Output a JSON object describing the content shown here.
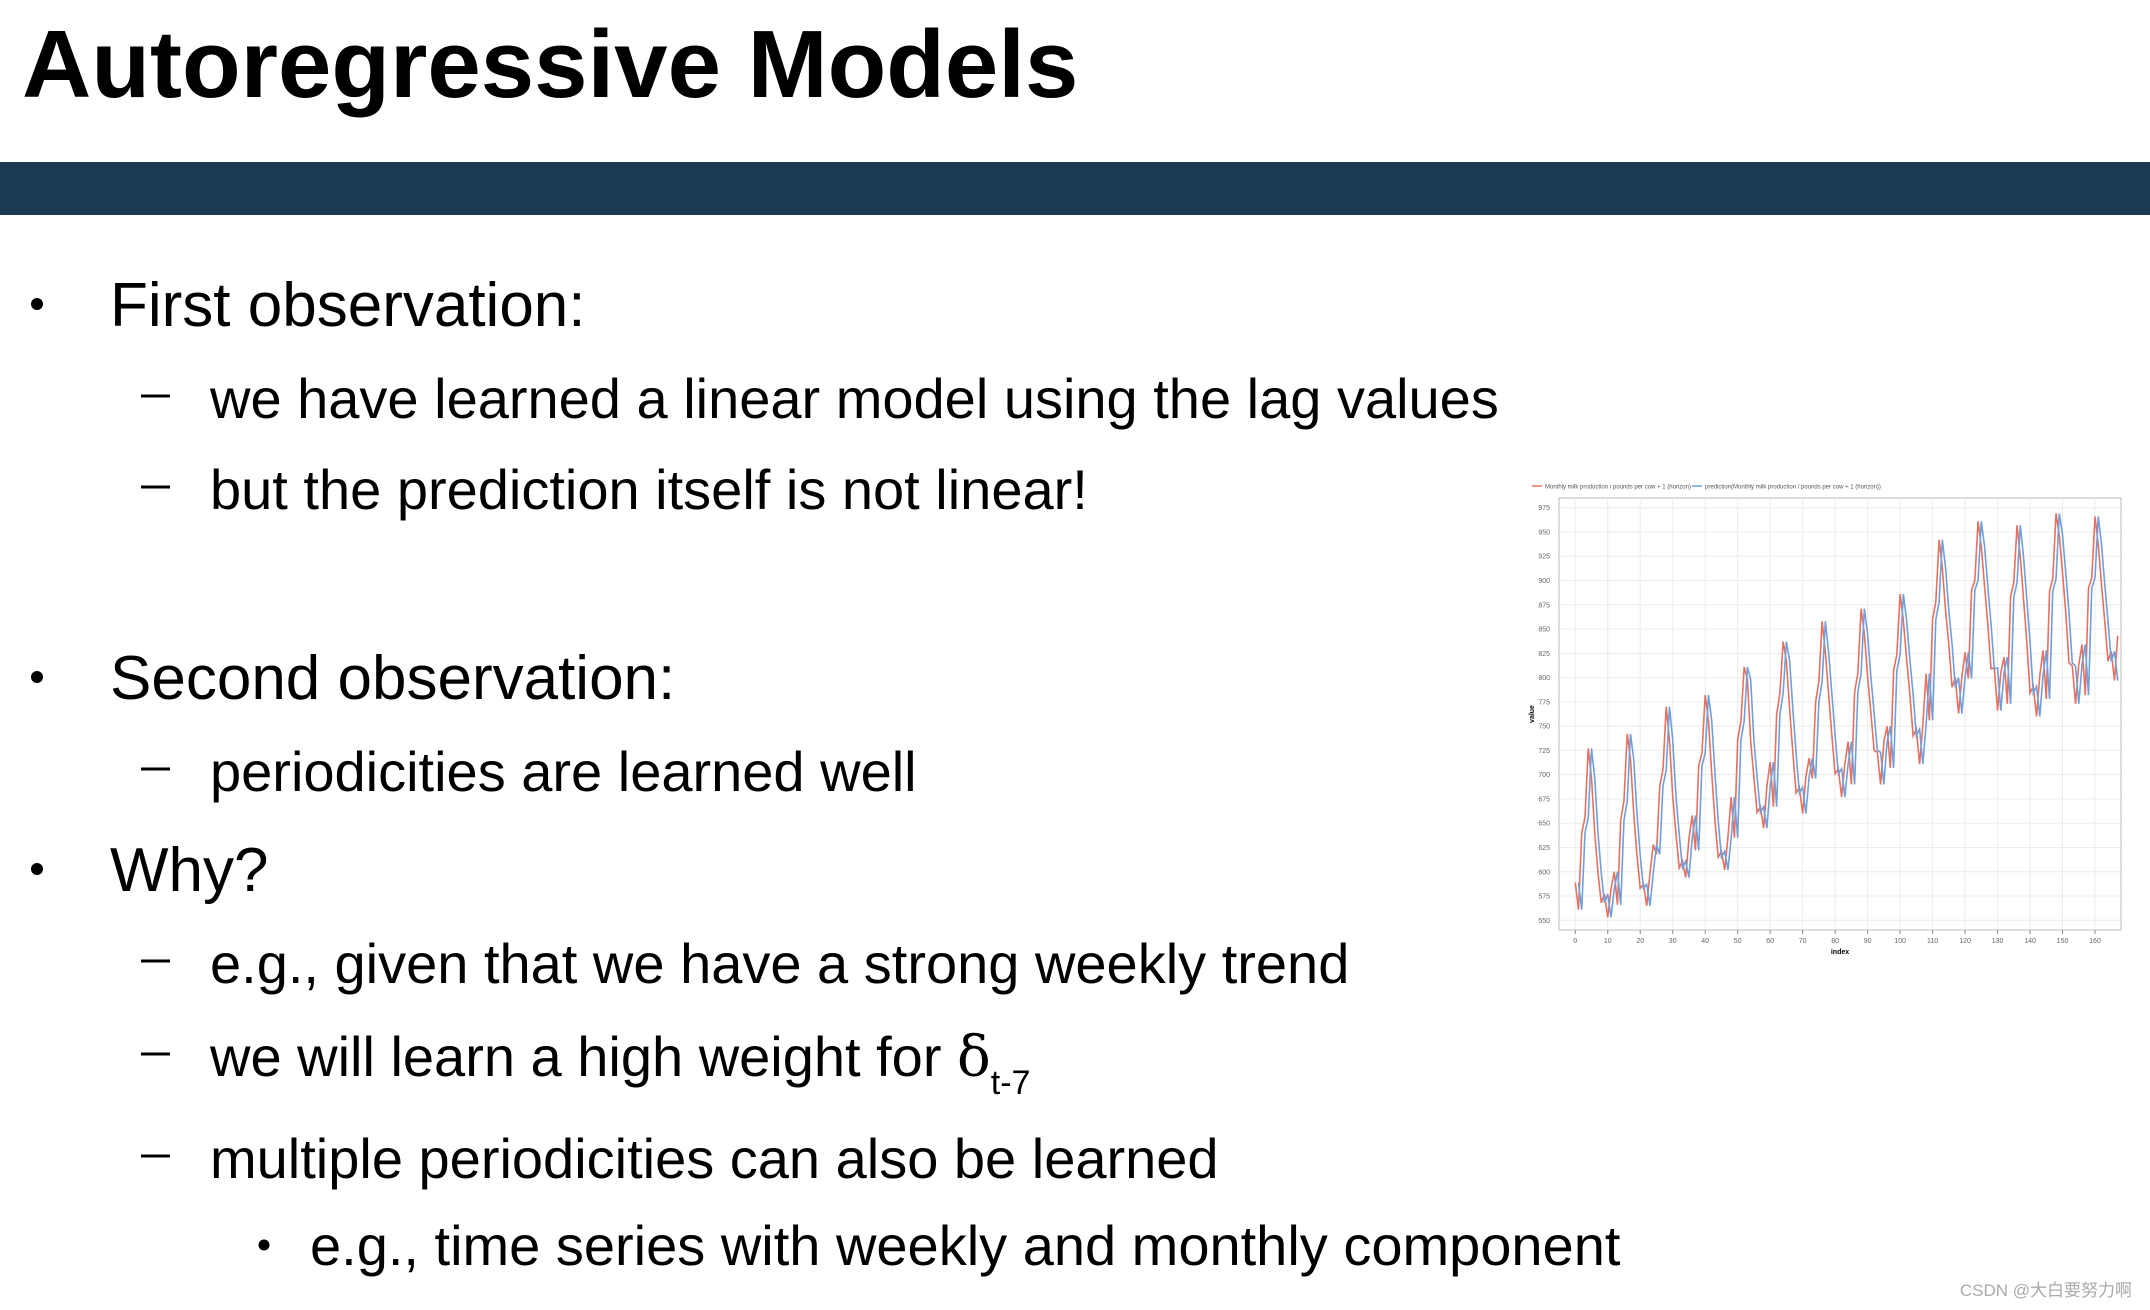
{
  "header": {
    "title": "Autoregressive Models"
  },
  "bullets": [
    {
      "text": "First observation:",
      "items": [
        {
          "text": "we have learned a linear model using the lag values"
        },
        {
          "text": "but the prediction itself is not linear!"
        }
      ]
    },
    {
      "text": "Second observation:",
      "items": [
        {
          "text": "periodicities are learned well"
        }
      ]
    },
    {
      "text": "Why?",
      "items": [
        {
          "text": "e.g., given that we have a strong weekly trend"
        },
        {
          "text": "we will learn a high weight for ",
          "symbol": "δ",
          "subscript": "t-7"
        },
        {
          "text": "multiple periodicities can also be learned",
          "items": [
            {
              "text": "e.g., time series with weekly and monthly component"
            }
          ]
        }
      ]
    }
  ],
  "chart_data": {
    "type": "line",
    "x_label": "index",
    "y_label": "value",
    "x": [
      0,
      1,
      2,
      3,
      4,
      5,
      6,
      7,
      8,
      9,
      10,
      11,
      12,
      13,
      14,
      15,
      16,
      17,
      18,
      19,
      20,
      21,
      22,
      23,
      24,
      25,
      26,
      27,
      28,
      29,
      30,
      31,
      32,
      33,
      34,
      35,
      36,
      37,
      38,
      39,
      40,
      41,
      42,
      43,
      44,
      45,
      46,
      47,
      48,
      49,
      50,
      51,
      52,
      53,
      54,
      55,
      56,
      57,
      58,
      59,
      60,
      61,
      62,
      63,
      64,
      65,
      66,
      67,
      68,
      69,
      70,
      71,
      72,
      73,
      74,
      75,
      76,
      77,
      78,
      79,
      80,
      81,
      82,
      83,
      84,
      85,
      86,
      87,
      88,
      89,
      90,
      91,
      92,
      93,
      94,
      95,
      96,
      97,
      98,
      99,
      100,
      101,
      102,
      103,
      104,
      105,
      106,
      107,
      108,
      109,
      110,
      111,
      112,
      113,
      114,
      115,
      116,
      117,
      118,
      119,
      120,
      121,
      122,
      123,
      124,
      125,
      126,
      127,
      128,
      129,
      130,
      131,
      132,
      133,
      134,
      135,
      136,
      137,
      138,
      139,
      140,
      141,
      142,
      143,
      144,
      145,
      146,
      147,
      148,
      149,
      150,
      151,
      152,
      153,
      154,
      155,
      156,
      157,
      158,
      159,
      160,
      161,
      162,
      163,
      164,
      165,
      166,
      167
    ],
    "series": [
      {
        "name": "Monthly milk production / pounds per cow + 1 (horizon)",
        "color": "#e8705f",
        "values": [
          589,
          561,
          640,
          656,
          727,
          697,
          640,
          599,
          568,
          577,
          553,
          582,
          600,
          566,
          653,
          673,
          742,
          716,
          660,
          617,
          583,
          587,
          565,
          598,
          628,
          618,
          688,
          705,
          770,
          736,
          678,
          639,
          604,
          611,
          594,
          634,
          658,
          622,
          709,
          722,
          782,
          756,
          702,
          653,
          615,
          621,
          602,
          635,
          677,
          635,
          736,
          755,
          811,
          798,
          735,
          697,
          661,
          667,
          645,
          688,
          713,
          667,
          762,
          784,
          837,
          817,
          767,
          722,
          681,
          687,
          660,
          698,
          717,
          696,
          775,
          796,
          858,
          826,
          783,
          740,
          701,
          706,
          677,
          711,
          734,
          690,
          785,
          805,
          871,
          845,
          801,
          764,
          725,
          723,
          690,
          734,
          750,
          707,
          807,
          824,
          886,
          859,
          819,
          783,
          740,
          747,
          711,
          751,
          804,
          756,
          860,
          878,
          942,
          913,
          869,
          834,
          790,
          800,
          763,
          800,
          826,
          799,
          890,
          900,
          961,
          935,
          894,
          855,
          809,
          810,
          766,
          805,
          821,
          773,
          883,
          898,
          957,
          924,
          881,
          837,
          784,
          791,
          760,
          802,
          828,
          778,
          889,
          902,
          969,
          947,
          908,
          867,
          815,
          812,
          773,
          813,
          834,
          782,
          892,
          903,
          966,
          937,
          896,
          858,
          817,
          827,
          797,
          843
        ]
      },
      {
        "name": "prediction(Monthly milk production / pounds per cow + 1 (horizon))",
        "color": "#6f9fdc",
        "values": [
          null,
          589,
          561,
          640,
          656,
          727,
          697,
          640,
          599,
          568,
          577,
          553,
          582,
          600,
          566,
          653,
          673,
          742,
          716,
          660,
          617,
          583,
          587,
          565,
          598,
          628,
          618,
          688,
          705,
          770,
          736,
          678,
          639,
          604,
          611,
          594,
          634,
          658,
          622,
          709,
          722,
          782,
          756,
          702,
          653,
          615,
          621,
          602,
          635,
          677,
          635,
          736,
          755,
          811,
          798,
          735,
          697,
          661,
          667,
          645,
          688,
          713,
          667,
          762,
          784,
          837,
          817,
          767,
          722,
          681,
          687,
          660,
          698,
          717,
          696,
          775,
          796,
          858,
          826,
          783,
          740,
          701,
          706,
          677,
          711,
          734,
          690,
          785,
          805,
          871,
          845,
          801,
          764,
          725,
          723,
          690,
          734,
          750,
          707,
          807,
          824,
          886,
          859,
          819,
          783,
          740,
          747,
          711,
          751,
          804,
          756,
          860,
          878,
          942,
          913,
          869,
          834,
          790,
          800,
          763,
          800,
          826,
          799,
          890,
          900,
          961,
          935,
          894,
          855,
          809,
          810,
          766,
          805,
          821,
          773,
          883,
          898,
          957,
          924,
          881,
          837,
          784,
          791,
          760,
          802,
          828,
          778,
          889,
          902,
          969,
          947,
          908,
          867,
          815,
          812,
          773,
          813,
          834,
          782,
          892,
          903,
          966,
          937,
          896,
          858,
          817,
          827,
          797
        ]
      }
    ],
    "xlim": [
      -5,
      168
    ],
    "xticks": [
      0,
      10,
      20,
      30,
      40,
      50,
      60,
      70,
      80,
      90,
      100,
      110,
      120,
      130,
      140,
      150,
      160
    ],
    "ylim": [
      540,
      985
    ],
    "yticks": [
      550,
      575,
      600,
      625,
      650,
      675,
      700,
      725,
      750,
      775,
      800,
      825,
      850,
      875,
      900,
      925,
      950,
      975
    ],
    "grid": true
  },
  "watermark": "CSDN @大白要努力啊"
}
